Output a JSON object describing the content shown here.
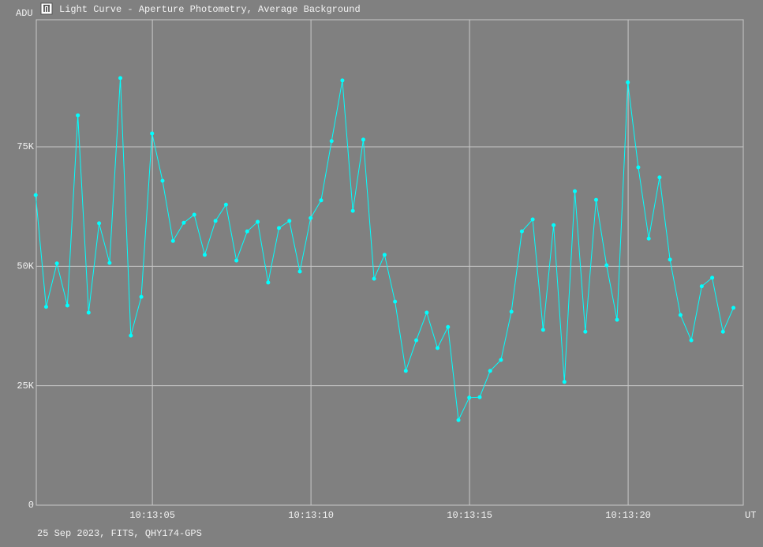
{
  "chart_data": {
    "type": "line",
    "title": "Light Curve - Aperture Photometry, Average Background",
    "y_label": "ADU",
    "x_label": "UT",
    "footer": "25 Sep 2023, FITS, QHY174-GPS",
    "color": "#00ffff",
    "grid": true,
    "xlim": [
      1.34,
      23.63
    ],
    "ylim": [
      0,
      101600
    ],
    "xticks": [
      {
        "value": 5,
        "label": "10:13:05"
      },
      {
        "value": 10,
        "label": "10:13:10"
      },
      {
        "value": 15,
        "label": "10:13:15"
      },
      {
        "value": 20,
        "label": "10:13:20"
      }
    ],
    "yticks": [
      0,
      {
        "value": 25000,
        "label": "25K"
      },
      {
        "value": 50000,
        "label": "50K"
      },
      {
        "value": 75000,
        "label": "75K"
      }
    ],
    "x": [
      1.32,
      1.65,
      1.99,
      2.32,
      2.65,
      2.99,
      3.32,
      3.65,
      3.99,
      4.32,
      4.65,
      4.99,
      5.32,
      5.65,
      5.99,
      6.32,
      6.65,
      6.99,
      7.32,
      7.65,
      7.99,
      8.32,
      8.65,
      8.99,
      9.32,
      9.65,
      9.99,
      10.32,
      10.65,
      10.99,
      11.32,
      11.65,
      11.99,
      12.32,
      12.65,
      12.99,
      13.32,
      13.65,
      13.99,
      14.32,
      14.65,
      14.99,
      15.32,
      15.65,
      15.99,
      16.32,
      16.65,
      16.99,
      17.32,
      17.65,
      17.99,
      18.32,
      18.65,
      18.99,
      19.32,
      19.65,
      19.99,
      20.32,
      20.65,
      20.99,
      21.32,
      21.65,
      21.99,
      22.32,
      22.65,
      22.99,
      23.32
    ],
    "values": [
      64900,
      41500,
      50600,
      41800,
      81600,
      40300,
      59000,
      50700,
      89400,
      35500,
      43600,
      77800,
      67900,
      55300,
      59100,
      60800,
      52400,
      59500,
      62900,
      51200,
      57300,
      59300,
      46600,
      58000,
      59500,
      48900,
      60100,
      63800,
      76200,
      88900,
      61600,
      76500,
      47400,
      52400,
      42600,
      28100,
      34500,
      40300,
      32900,
      37300,
      17800,
      22500,
      22600,
      28100,
      30400,
      40500,
      57300,
      59800,
      36700,
      58600,
      25800,
      65700,
      36300,
      63900,
      50200,
      38800,
      88500,
      70700,
      55800,
      68600,
      51400,
      39800,
      34500,
      45800,
      47600,
      36300,
      41300
    ]
  }
}
